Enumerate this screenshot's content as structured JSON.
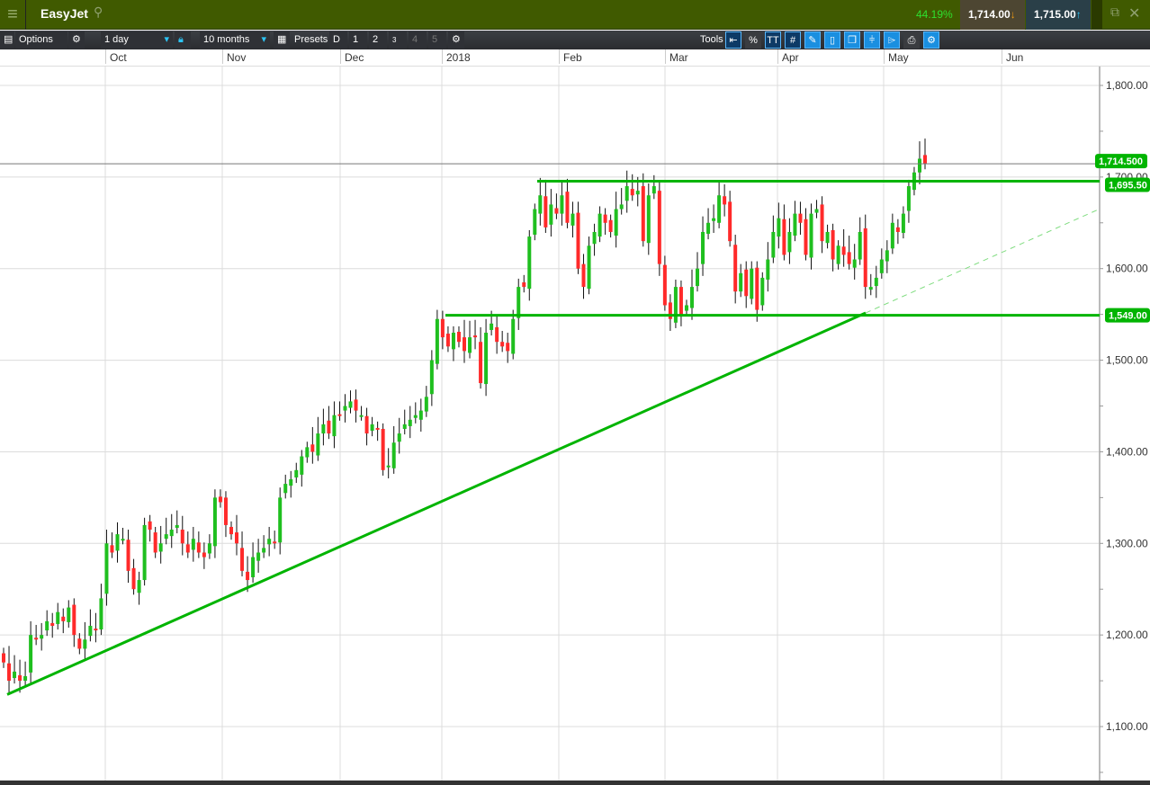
{
  "header": {
    "menu_icon": "hamburger-icon",
    "title": "EasyJet",
    "search_icon": "search-icon",
    "change_pct": "44.19%",
    "sell_price": "1,714.00",
    "buy_price": "1,715.00",
    "popout_icon": "popout-icon",
    "close_icon": "close-icon"
  },
  "toolbar": {
    "options": "Options",
    "interval": "1 day",
    "range": "10 months",
    "presets": "Presets",
    "preset_buttons": [
      "D",
      "1",
      "2",
      "3",
      "4",
      "5"
    ],
    "tools": "Tools",
    "percent": "%",
    "text_tool": "TT"
  },
  "colors": {
    "up": "#1fbf1f",
    "down": "#ff2a2a",
    "lines": "#00b400",
    "header": "#405a00"
  },
  "chart_data": {
    "type": "candlestick",
    "x_labels": [
      "Oct",
      "Nov",
      "Dec",
      "2018",
      "Feb",
      "Mar",
      "Apr",
      "May",
      "Jun"
    ],
    "y_ticks": [
      "1,800.00",
      "1,700.00",
      "1,600.00",
      "1,500.00",
      "1,400.00",
      "1,300.00",
      "1,200.00",
      "1,100.00"
    ],
    "ylim": [
      1045,
      1820
    ],
    "closes": [
      1170,
      1150,
      1160,
      1150,
      1155,
      1200,
      1195,
      1200,
      1215,
      1210,
      1225,
      1215,
      1230,
      1200,
      1185,
      1195,
      1210,
      1205,
      1240,
      1300,
      1290,
      1310,
      1305,
      1270,
      1250,
      1260,
      1320,
      1315,
      1290,
      1300,
      1310,
      1315,
      1320,
      1300,
      1290,
      1305,
      1290,
      1285,
      1300,
      1350,
      1345,
      1320,
      1310,
      1300,
      1270,
      1260,
      1285,
      1290,
      1295,
      1305,
      1300,
      1350,
      1365,
      1370,
      1380,
      1395,
      1405,
      1400,
      1420,
      1430,
      1420,
      1440,
      1440,
      1450,
      1455,
      1445,
      1440,
      1420,
      1430,
      1425,
      1380,
      1385,
      1410,
      1420,
      1430,
      1435,
      1440,
      1445,
      1460,
      1500,
      1545,
      1525,
      1515,
      1530,
      1520,
      1510,
      1525,
      1525,
      1475,
      1530,
      1540,
      1520,
      1515,
      1510,
      1545,
      1580,
      1580,
      1635,
      1665,
      1680,
      1645,
      1670,
      1660,
      1680,
      1650,
      1660,
      1600,
      1580,
      1625,
      1640,
      1660,
      1650,
      1640,
      1665,
      1670,
      1690,
      1680,
      1685,
      1630,
      1680,
      1690,
      1605,
      1560,
      1545,
      1580,
      1550,
      1560,
      1580,
      1600,
      1640,
      1650,
      1655,
      1680,
      1670,
      1630,
      1575,
      1595,
      1570,
      1600,
      1555,
      1590,
      1610,
      1640,
      1655,
      1615,
      1640,
      1660,
      1650,
      1615,
      1660,
      1665,
      1630,
      1640,
      1610,
      1625,
      1615,
      1605,
      1610,
      1640,
      1580,
      1580,
      1590,
      1610,
      1620,
      1650,
      1640,
      1660,
      1690,
      1705,
      1720,
      1714.5
    ],
    "current_price": {
      "value": 1714.5,
      "label": "1,714.500"
    },
    "resistance": {
      "value": 1695.5,
      "label": "1,695.50"
    },
    "support": {
      "value": 1549,
      "label": "1,549.00"
    },
    "trendline": {
      "from_price": 1135,
      "to_price": 1551.6
    }
  }
}
